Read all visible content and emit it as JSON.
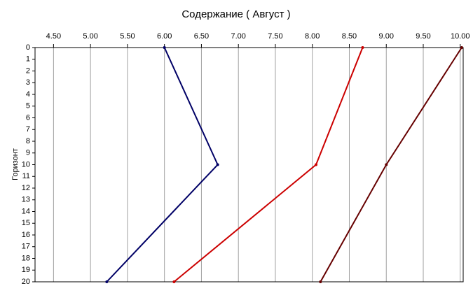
{
  "chart_data": {
    "type": "line",
    "title": "Содержание    ( Август )",
    "y_label": "Горизонт",
    "y": [
      0,
      10,
      20
    ],
    "series": [
      {
        "color": "#000066",
        "values": [
          6.0,
          6.72,
          5.22
        ]
      },
      {
        "color": "#cc0000",
        "values": [
          8.68,
          8.05,
          6.13
        ]
      },
      {
        "color": "#660000",
        "values": [
          10.02,
          9.0,
          8.11
        ]
      }
    ],
    "xlim": [
      4.25,
      10.04
    ],
    "xticks": [
      {
        "value": 4.5,
        "label": "4.50"
      },
      {
        "value": 5,
        "label": "5.00"
      },
      {
        "value": 5.5,
        "label": "5.50"
      },
      {
        "value": 6,
        "label": "6.00"
      },
      {
        "value": 6.5,
        "label": "6.50"
      },
      {
        "value": 7,
        "label": "7.00"
      },
      {
        "value": 7.5,
        "label": "7.50"
      },
      {
        "value": 8,
        "label": "8.00"
      },
      {
        "value": 8.5,
        "label": "8.50"
      },
      {
        "value": 9,
        "label": "9.00"
      },
      {
        "value": 9.5,
        "label": "9.50"
      },
      {
        "value": 10,
        "label": "10.00"
      }
    ],
    "ylim": [
      0,
      20
    ],
    "yticks": [
      0,
      1,
      2,
      3,
      4,
      5,
      6,
      7,
      8,
      9,
      10,
      11,
      12,
      13,
      14,
      15,
      16,
      17,
      18,
      19,
      20
    ],
    "grid": true
  }
}
